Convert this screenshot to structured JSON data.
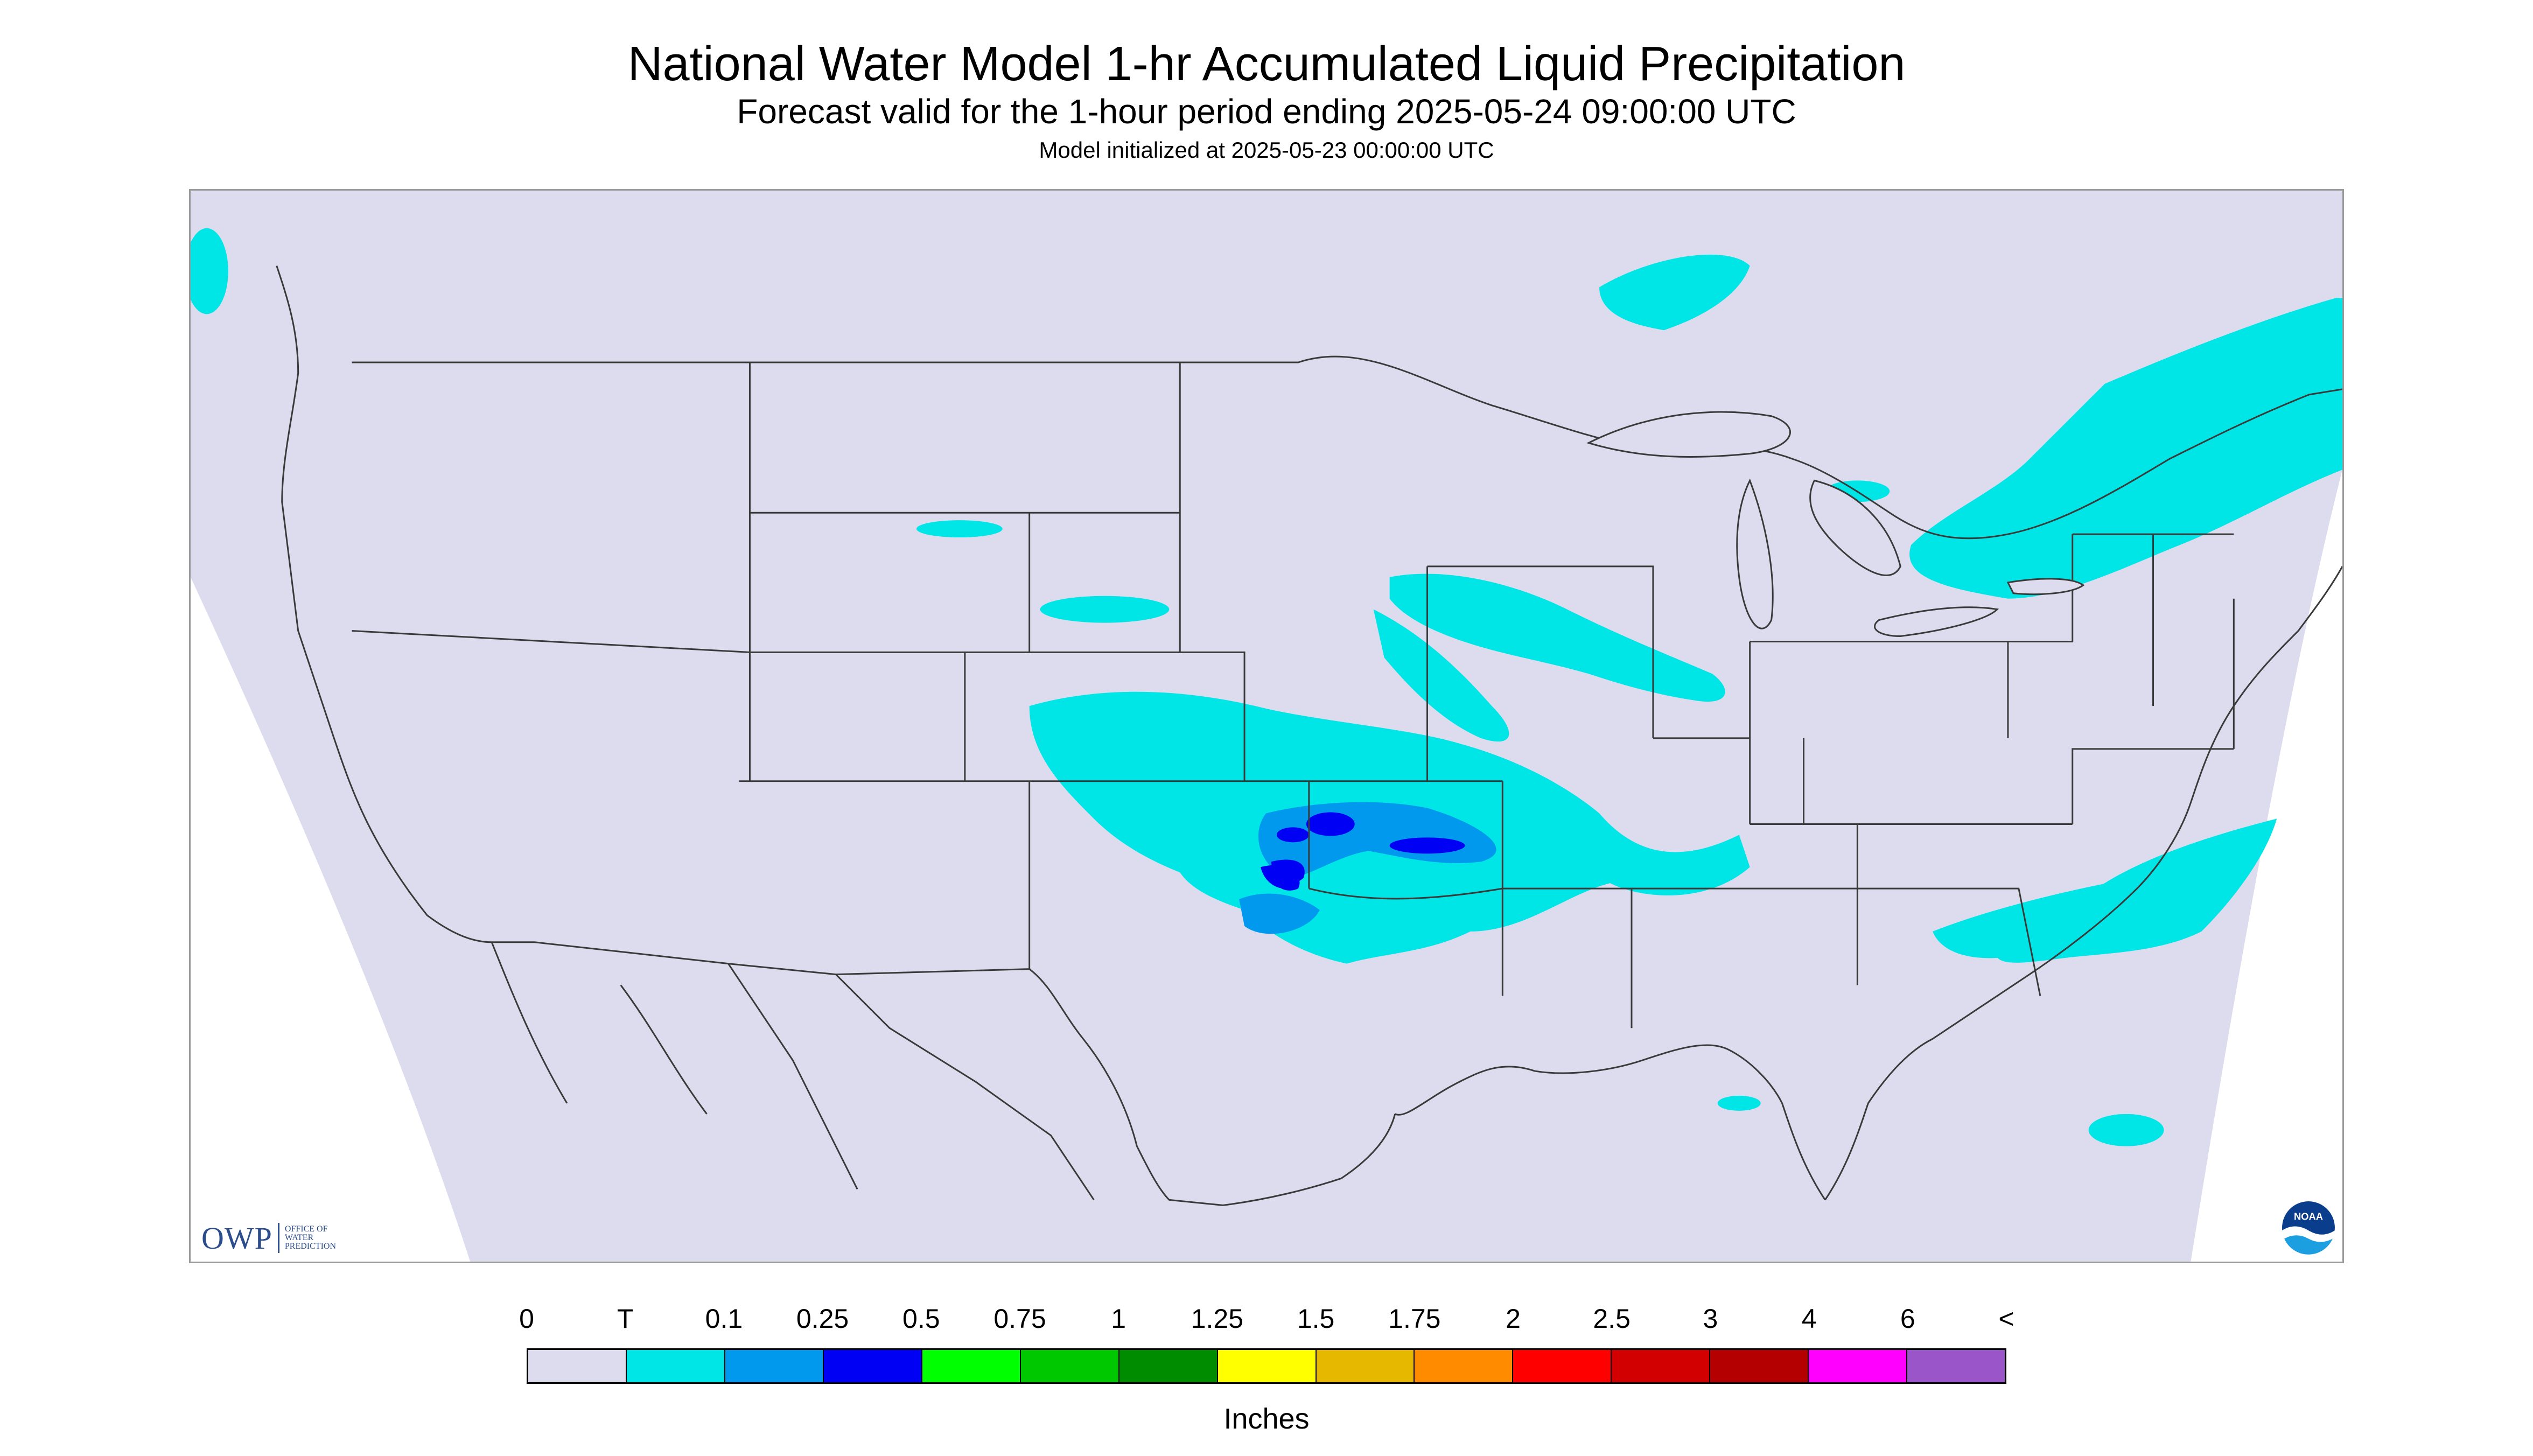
{
  "title": "National Water Model 1-hr Accumulated Liquid Precipitation",
  "subtitle": "Forecast valid for the 1-hour period ending 2025-05-24 09:00:00 UTC",
  "init_line": "Model initialized at 2025-05-23 00:00:00 UTC",
  "logos": {
    "owp_letters": "OWP",
    "owp_text": [
      "OFFICE OF",
      "WATER",
      "PREDICTION"
    ],
    "noaa_text": "NOAA"
  },
  "legend": {
    "unit": "Inches",
    "labels": [
      "0",
      "T",
      "0.1",
      "0.25",
      "0.5",
      "0.75",
      "1",
      "1.25",
      "1.5",
      "1.75",
      "2",
      "2.5",
      "3",
      "4",
      "6",
      "<"
    ],
    "colors": [
      "#dcdcee",
      "#00e5e5",
      "#0099ee",
      "#0000f5",
      "#00ff00",
      "#00c800",
      "#008c00",
      "#ffff00",
      "#e6b800",
      "#ff8c00",
      "#ff0000",
      "#d20000",
      "#b40000",
      "#ff00ff",
      "#9a55c8"
    ]
  },
  "colors": {
    "no_precip": "#dcdcee",
    "outside_domain": "#ffffff",
    "boundaries": "#3a3a3a",
    "light_precip": "#00e5e5",
    "moderate_precip": "#0099ee",
    "heavy_precip": "#0000f5"
  }
}
